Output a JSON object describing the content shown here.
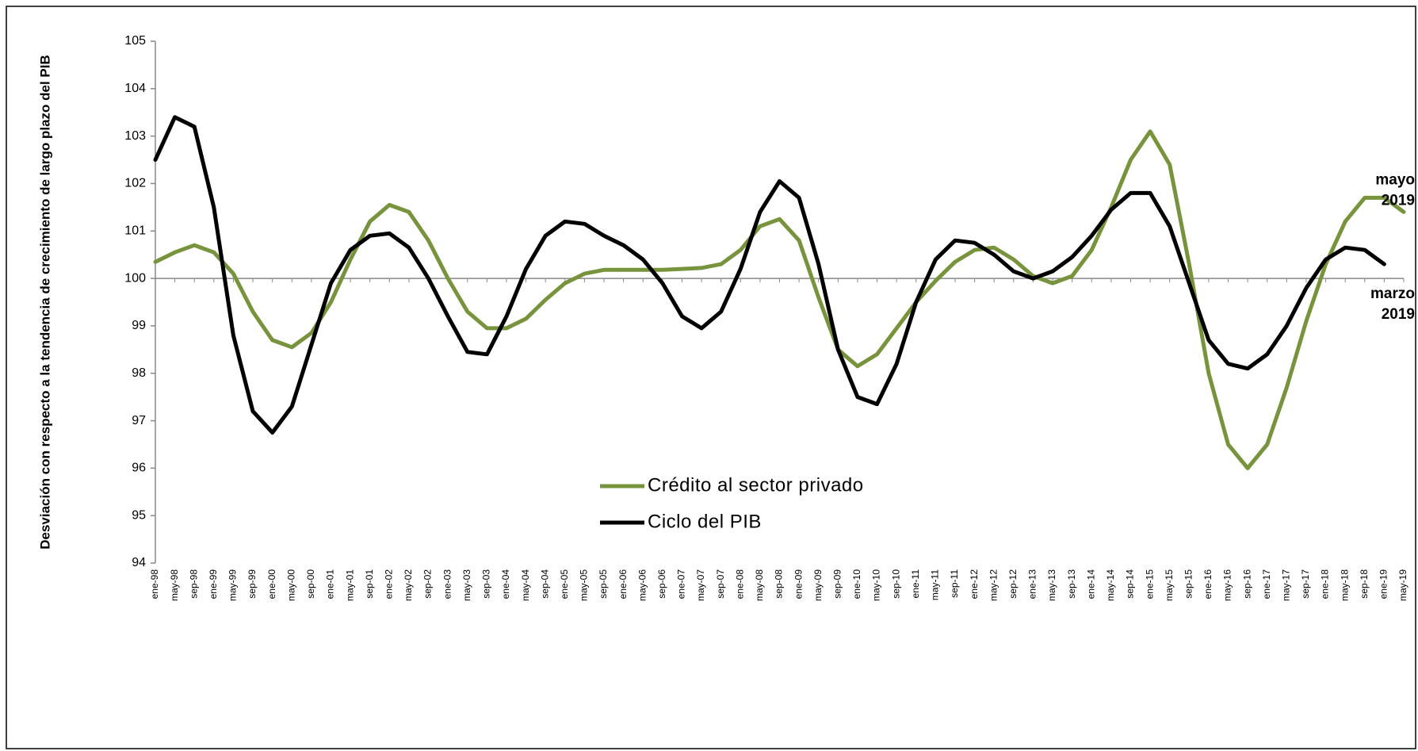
{
  "chart_data": {
    "type": "line",
    "ylabel": "Desviación con respecto a la tendencia de crecimiento de largo plazo del PIB",
    "categories": [
      "ene-98",
      "may-98",
      "sep-98",
      "ene-99",
      "may-99",
      "sep-99",
      "ene-00",
      "may-00",
      "sep-00",
      "ene-01",
      "may-01",
      "sep-01",
      "ene-02",
      "may-02",
      "sep-02",
      "ene-03",
      "may-03",
      "sep-03",
      "ene-04",
      "may-04",
      "sep-04",
      "ene-05",
      "may-05",
      "sep-05",
      "ene-06",
      "may-06",
      "sep-06",
      "ene-07",
      "may-07",
      "sep-07",
      "ene-08",
      "may-08",
      "sep-08",
      "ene-09",
      "may-09",
      "sep-09",
      "ene-10",
      "may-10",
      "sep-10",
      "ene-11",
      "may-11",
      "sep-11",
      "ene-12",
      "may-12",
      "sep-12",
      "ene-13",
      "may-13",
      "sep-13",
      "ene-14",
      "may-14",
      "sep-14",
      "ene-15",
      "may-15",
      "sep-15",
      "ene-16",
      "may-16",
      "sep-16",
      "ene-17",
      "may-17",
      "sep-17",
      "ene-18",
      "may-18",
      "sep-18",
      "ene-19",
      "may-19"
    ],
    "series": [
      {
        "name": "Crédito al sector privado",
        "color": "#77933c",
        "values": [
          100.35,
          100.55,
          100.7,
          100.55,
          100.1,
          99.3,
          98.7,
          98.55,
          98.85,
          99.5,
          100.4,
          101.2,
          101.55,
          101.4,
          100.8,
          100.0,
          99.3,
          98.95,
          98.95,
          99.15,
          99.55,
          99.9,
          100.1,
          100.18,
          100.18,
          100.18,
          100.18,
          100.2,
          100.22,
          100.3,
          100.6,
          101.1,
          101.25,
          100.8,
          99.6,
          98.5,
          98.15,
          98.4,
          98.95,
          99.5,
          99.95,
          100.35,
          100.6,
          100.65,
          100.4,
          100.05,
          99.9,
          100.05,
          100.6,
          101.5,
          102.5,
          103.1,
          102.4,
          100.3,
          98.0,
          96.5,
          96.0,
          96.5,
          97.7,
          99.1,
          100.3,
          101.2,
          101.7,
          101.7,
          101.4
        ]
      },
      {
        "name": "Ciclo del PIB",
        "color": "#000000",
        "values": [
          102.5,
          103.4,
          103.2,
          101.5,
          98.8,
          97.2,
          96.75,
          97.3,
          98.6,
          99.9,
          100.6,
          100.9,
          100.95,
          100.65,
          100.0,
          99.2,
          98.45,
          98.4,
          99.2,
          100.2,
          100.9,
          101.2,
          101.15,
          100.9,
          100.7,
          100.4,
          99.9,
          99.2,
          98.95,
          99.3,
          100.2,
          101.4,
          102.05,
          101.7,
          100.3,
          98.5,
          97.5,
          97.35,
          98.2,
          99.5,
          100.4,
          100.8,
          100.75,
          100.5,
          100.15,
          100.0,
          100.15,
          100.45,
          100.9,
          101.45,
          101.8,
          101.8,
          101.1,
          99.9,
          98.7,
          98.2,
          98.1,
          98.4,
          99.0,
          99.8,
          100.4,
          100.65,
          100.6,
          100.3,
          null
        ]
      }
    ],
    "ylim": [
      94,
      105
    ],
    "yticks": [
      94,
      95,
      96,
      97,
      98,
      99,
      100,
      101,
      102,
      103,
      104,
      105
    ],
    "x_axis_at": 100,
    "legend": "center",
    "annotations": [
      {
        "lines": [
          "mayo",
          "2019"
        ],
        "color": "#77933c",
        "series": 0
      },
      {
        "lines": [
          "marzo",
          "2019"
        ],
        "color": "#000000",
        "series": 1
      }
    ]
  }
}
